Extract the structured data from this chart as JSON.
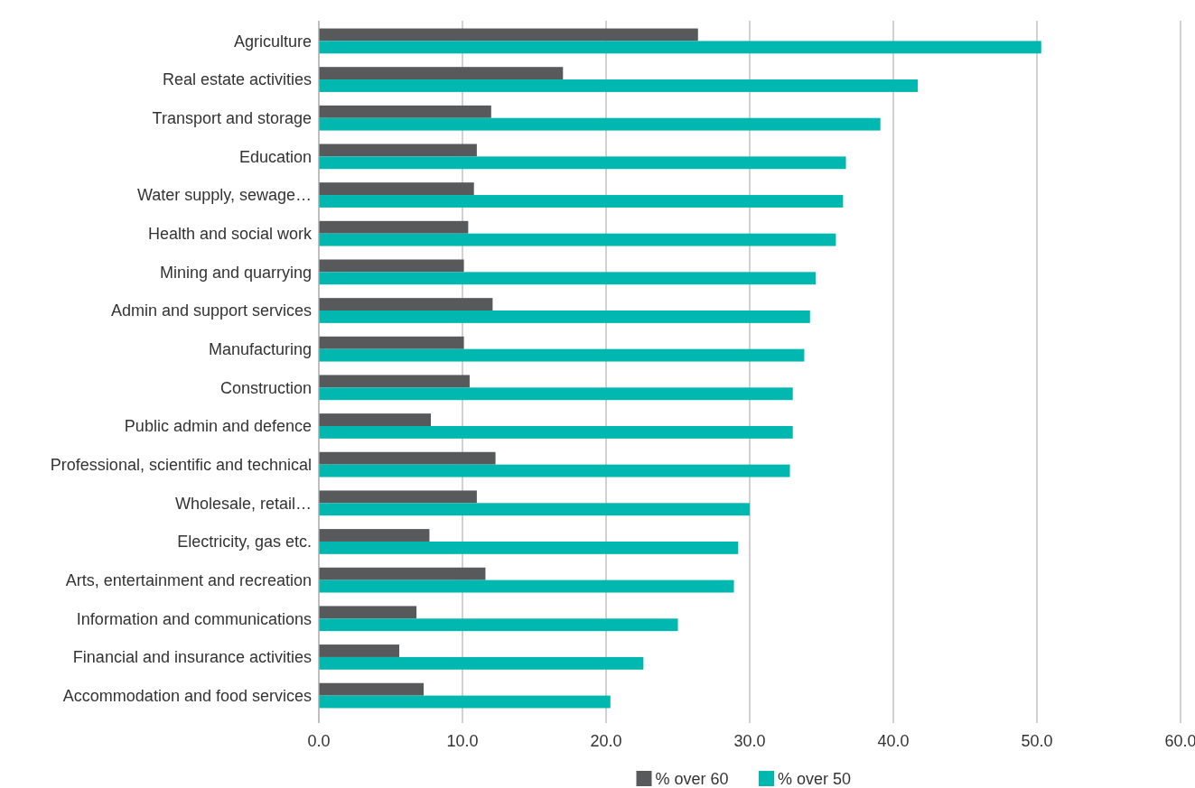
{
  "chart_data": {
    "type": "bar",
    "orientation": "horizontal",
    "categories": [
      "Agriculture",
      "Real estate activities",
      "Transport and storage",
      "Education",
      "Water supply, sewage…",
      "Health and social work",
      "Mining and quarrying",
      "Admin and support services",
      "Manufacturing",
      "Construction",
      "Public admin and defence",
      "Professional, scientific and technical",
      "Wholesale, retail…",
      "Electricity, gas etc.",
      "Arts, entertainment and recreation",
      "Information and communications",
      "Financial and insurance activities",
      "Accommodation and food services"
    ],
    "series": [
      {
        "name": "% over 60",
        "color": "#58595b",
        "values": [
          26.4,
          17.0,
          12.0,
          11.0,
          10.8,
          10.4,
          10.1,
          12.1,
          10.1,
          10.5,
          7.8,
          12.3,
          11.0,
          7.7,
          11.6,
          6.8,
          5.6,
          7.3
        ]
      },
      {
        "name": "% over 50",
        "color": "#00b8b0",
        "values": [
          50.3,
          41.7,
          39.1,
          36.7,
          36.5,
          36.0,
          34.6,
          34.2,
          33.8,
          33.0,
          33.0,
          32.8,
          30.0,
          29.2,
          28.9,
          25.0,
          22.6,
          20.3
        ]
      }
    ],
    "xlim": [
      0,
      60
    ],
    "xticks": [
      {
        "value": 0,
        "label": "0.0"
      },
      {
        "value": 10,
        "label": "10.0"
      },
      {
        "value": 20,
        "label": "20.0"
      },
      {
        "value": 30,
        "label": "30.0"
      },
      {
        "value": 40,
        "label": "40.0"
      },
      {
        "value": 50,
        "label": "50.0"
      },
      {
        "value": 60,
        "label": "60.0"
      }
    ],
    "grid": "x",
    "legend": "bottom"
  }
}
